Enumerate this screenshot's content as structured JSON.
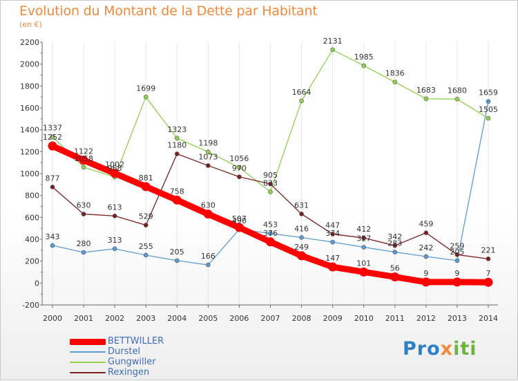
{
  "chart_data": {
    "type": "line",
    "title": "Evolution du Montant de la Dette par Habitant",
    "subtitle": "(en €)",
    "x": [
      "2000",
      "2001",
      "2002",
      "2003",
      "2004",
      "2005",
      "2006",
      "2007",
      "2008",
      "2009",
      "2010",
      "2011",
      "2012",
      "2013",
      "2014"
    ],
    "ylim": [
      -200,
      2200
    ],
    "yticks": [
      -200,
      0,
      200,
      400,
      600,
      800,
      1000,
      1200,
      1400,
      1600,
      1800,
      2000,
      2200
    ],
    "grid": "vertical",
    "legend_position": "bottom-left",
    "series": [
      {
        "name": "BETTWILLER",
        "color": "#ff0000",
        "values": [
          1252,
          1122,
          1002,
          881,
          758,
          630,
          507,
          376,
          249,
          147,
          101,
          56,
          9,
          9,
          7
        ]
      },
      {
        "name": "Durstel",
        "color": "#5b9bd5",
        "values": [
          343,
          280,
          313,
          255,
          205,
          166,
          490,
          453,
          416,
          374,
          327,
          283,
          242,
          205,
          1659
        ]
      },
      {
        "name": "Gungwiller",
        "color": "#8fd14f",
        "values": [
          1337,
          1058,
          968,
          1699,
          1323,
          1198,
          1056,
          833,
          1664,
          2131,
          1985,
          1836,
          1683,
          1680,
          1505
        ]
      },
      {
        "name": "Rexingen",
        "color": "#7a1f1f",
        "values": [
          877,
          630,
          613,
          529,
          1180,
          1073,
          970,
          905,
          631,
          447,
          412,
          342,
          459,
          259,
          221
        ]
      }
    ]
  },
  "logo": {
    "p1": "Pro",
    "p2": "x",
    "p3": "iti"
  }
}
